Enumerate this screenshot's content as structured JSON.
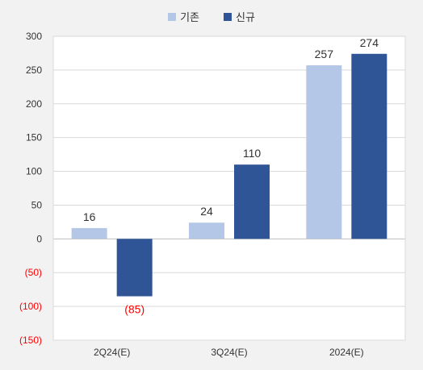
{
  "chart_data": {
    "type": "bar",
    "categories": [
      "2Q24(E)",
      "3Q24(E)",
      "2024(E)"
    ],
    "series": [
      {
        "name": "기존",
        "values": [
          16,
          24,
          257
        ],
        "color": "#b4c7e7"
      },
      {
        "name": "신규",
        "values": [
          -85,
          110,
          274
        ],
        "color": "#2f5597"
      }
    ],
    "value_labels": [
      [
        "16",
        "24",
        "257"
      ],
      [
        "(85)",
        "110",
        "274"
      ]
    ],
    "y_ticks": [
      {
        "value": 300,
        "label": "300"
      },
      {
        "value": 250,
        "label": "250"
      },
      {
        "value": 200,
        "label": "200"
      },
      {
        "value": 150,
        "label": "150"
      },
      {
        "value": 100,
        "label": "100"
      },
      {
        "value": 50,
        "label": "50"
      },
      {
        "value": 0,
        "label": "0"
      },
      {
        "value": -50,
        "label": "(50)"
      },
      {
        "value": -100,
        "label": "(100)"
      },
      {
        "value": -150,
        "label": "(150)"
      }
    ],
    "ylim": [
      -150,
      300
    ],
    "grid": true,
    "legend_position": "top-center",
    "negative_label_color": "#ff0000"
  }
}
